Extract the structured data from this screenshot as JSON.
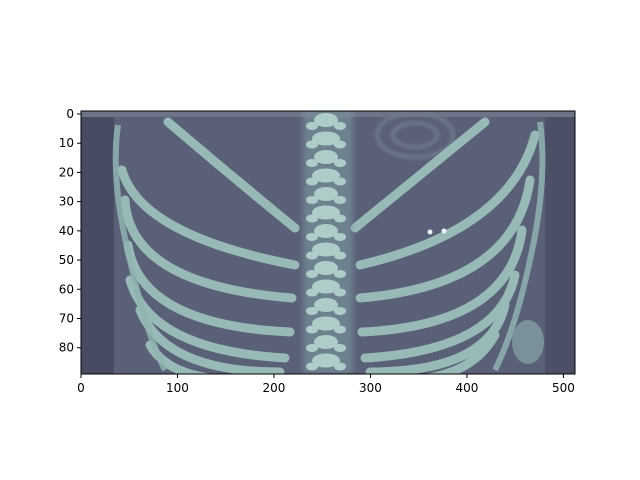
{
  "figure": {
    "image": {
      "description_icon": "ribcage-ct-scan-image",
      "colormap": "bone",
      "extent_x": [
        0,
        512
      ],
      "extent_y": [
        0,
        89
      ]
    },
    "axes": {
      "x_ticks": [
        {
          "value": 0,
          "label": "0"
        },
        {
          "value": 100,
          "label": "100"
        },
        {
          "value": 200,
          "label": "200"
        },
        {
          "value": 300,
          "label": "300"
        },
        {
          "value": 400,
          "label": "400"
        },
        {
          "value": 500,
          "label": "500"
        }
      ],
      "y_ticks": [
        {
          "value": 0,
          "label": "0"
        },
        {
          "value": 10,
          "label": "10"
        },
        {
          "value": 20,
          "label": "20"
        },
        {
          "value": 30,
          "label": "30"
        },
        {
          "value": 40,
          "label": "40"
        },
        {
          "value": 50,
          "label": "50"
        },
        {
          "value": 60,
          "label": "60"
        },
        {
          "value": 70,
          "label": "70"
        },
        {
          "value": 80,
          "label": "80"
        }
      ]
    },
    "colors": {
      "background": "#5a6077",
      "bone": "#9fc4bf",
      "spine": "#b6d6cf",
      "dark_edge": "#474c62"
    }
  }
}
